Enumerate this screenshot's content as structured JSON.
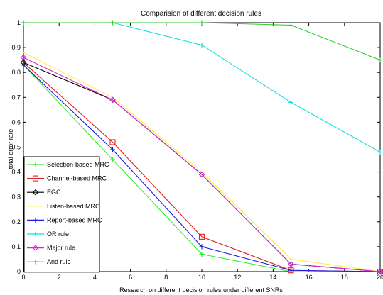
{
  "chart_data": {
    "type": "line",
    "title": "Comparision of different decision rules",
    "xlabel": "Research on different decision rules under different SNRs",
    "ylabel": "total error rate",
    "xlim": [
      0,
      20
    ],
    "ylim": [
      0,
      1
    ],
    "xticks": [
      "0",
      "2",
      "4",
      "6",
      "8",
      "10",
      "12",
      "14",
      "16",
      "18",
      "20"
    ],
    "yticks": [
      "0",
      "0.1",
      "0.2",
      "0.3",
      "0.4",
      "0.5",
      "0.6",
      "0.7",
      "0.8",
      "0.9",
      "1"
    ],
    "grid": false,
    "legend_position": "bottom-left",
    "x": [
      0,
      5,
      10,
      15,
      20
    ],
    "series": [
      {
        "name": "Selection-based MRC",
        "color": "#33ee33",
        "marker": "plus",
        "values": [
          0.83,
          0.45,
          0.07,
          0.0,
          0.0
        ]
      },
      {
        "name": "Channel-based MRC",
        "color": "#dd2222",
        "marker": "square",
        "values": [
          0.84,
          0.52,
          0.14,
          0.005,
          0.0
        ]
      },
      {
        "name": "EGC",
        "color": "#000000",
        "marker": "diamond",
        "values": [
          0.84,
          0.69,
          0.39,
          0.03,
          0.0
        ]
      },
      {
        "name": "Listen-based MRC",
        "color": "#ffee44",
        "marker": "none",
        "values": [
          0.88,
          0.7,
          0.4,
          0.05,
          0.0
        ]
      },
      {
        "name": "Report-based MRC",
        "color": "#1a1aee",
        "marker": "plus",
        "values": [
          0.83,
          0.49,
          0.1,
          0.005,
          0.0
        ]
      },
      {
        "name": "OR rule",
        "color": "#11dddd",
        "marker": "plus",
        "values": [
          1.0,
          1.0,
          0.91,
          0.68,
          0.48
        ]
      },
      {
        "name": "Major rule",
        "color": "#dd22dd",
        "marker": "diamond",
        "values": [
          0.86,
          0.69,
          0.39,
          0.03,
          0.0
        ]
      },
      {
        "name": "And rule",
        "color": "#33cc33",
        "marker": "plus",
        "values": [
          1.0,
          1.0,
          1.0,
          0.99,
          0.85
        ]
      }
    ]
  }
}
